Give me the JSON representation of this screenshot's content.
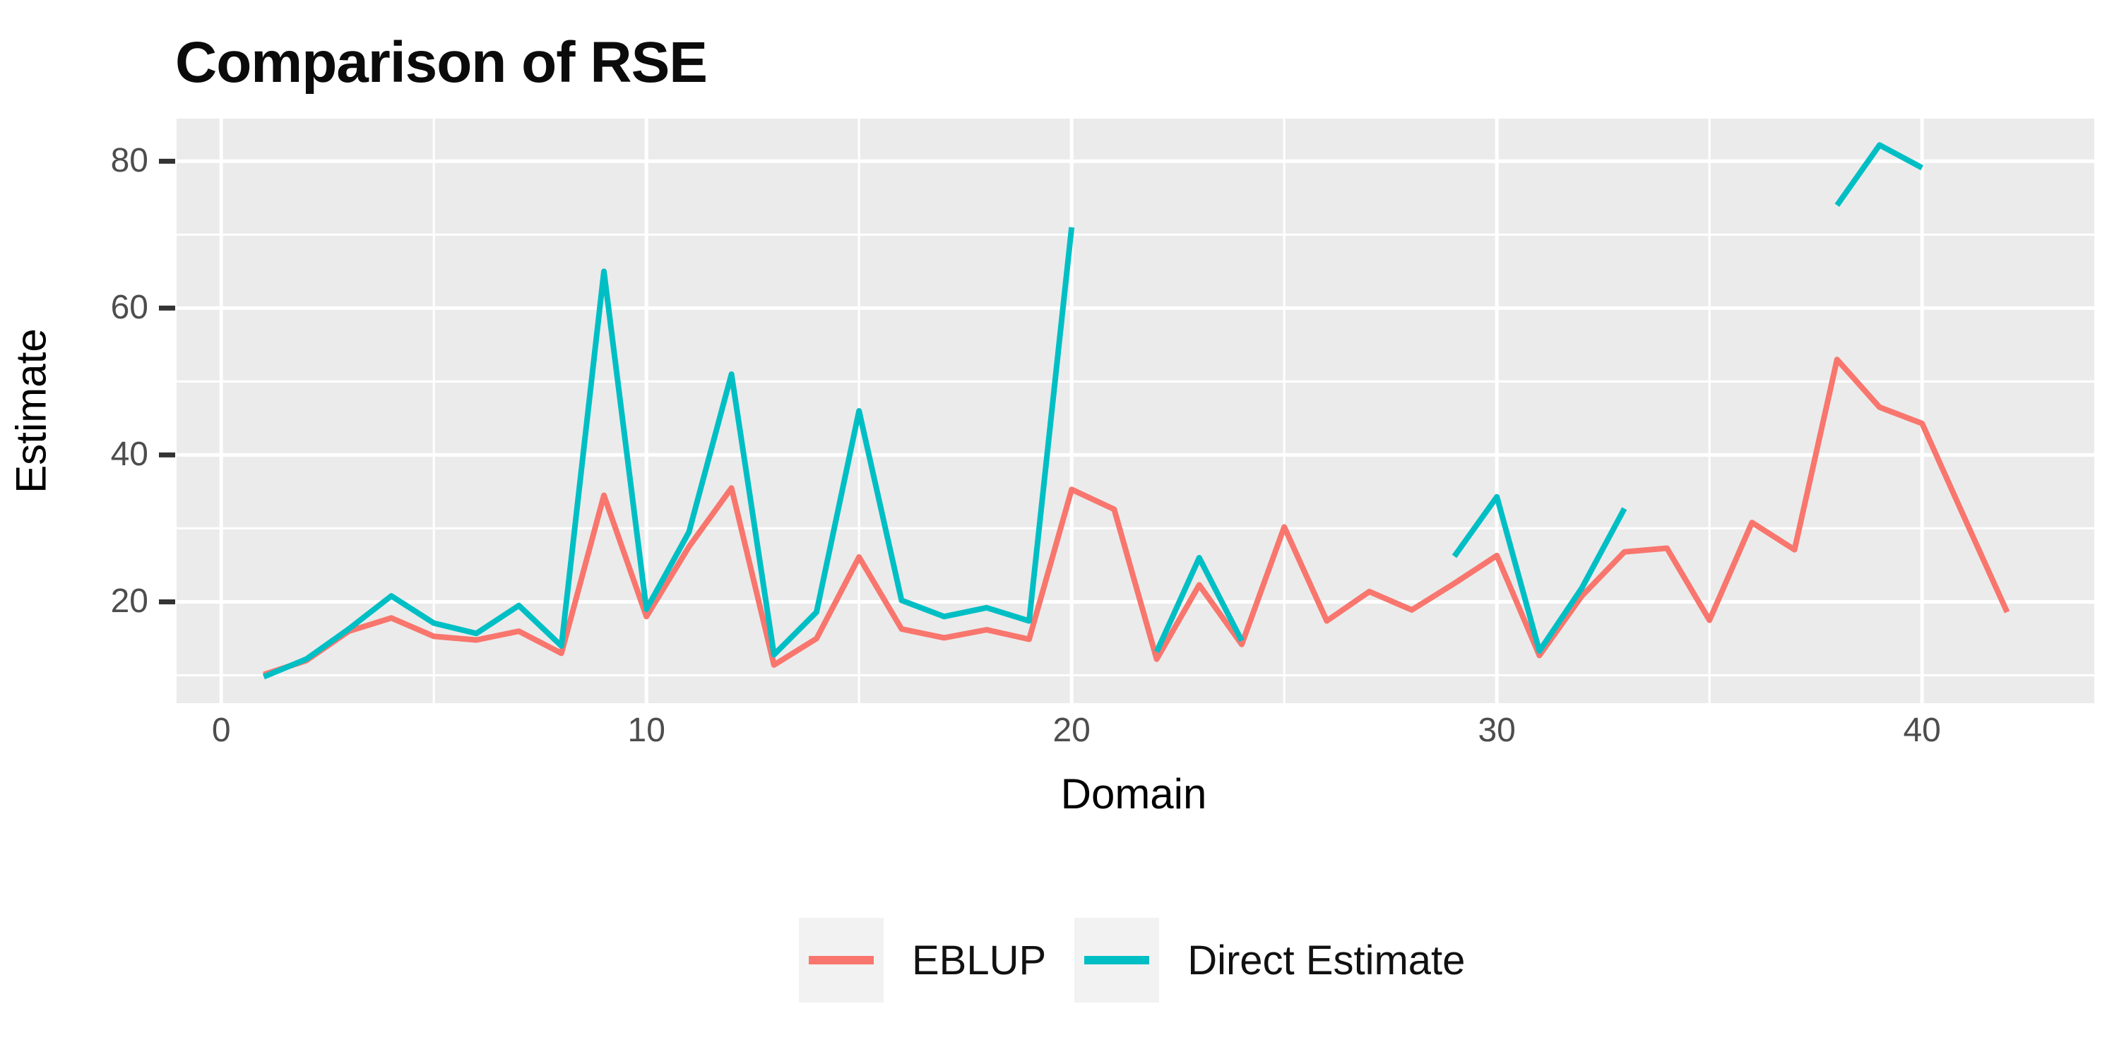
{
  "title": "Comparison of RSE",
  "axes": {
    "x_label": "Domain",
    "y_label": "Estimate"
  },
  "legend": {
    "items": [
      {
        "label": "EBLUP",
        "color": "#F8766D"
      },
      {
        "label": "Direct Estimate",
        "color": "#00BFC4"
      }
    ]
  },
  "colors": {
    "panel_background": "#EBEBEB",
    "gridline": "#FFFFFF",
    "tick_mark": "#333333",
    "tick_text": "#4D4D4D",
    "title_text": "#0B0B0B",
    "axis_title_text": "#000000",
    "legend_key_background": "#F2F2F2",
    "eblup_line": "#F8766D",
    "direct_line": "#00BFC4"
  },
  "chart_data": {
    "type": "line",
    "title": "Comparison of RSE",
    "xlabel": "Domain",
    "ylabel": "Estimate",
    "legend_position": "bottom",
    "grid": "on",
    "panel_background": "#EBEBEB",
    "x": [
      1,
      2,
      3,
      4,
      5,
      6,
      7,
      8,
      9,
      10,
      11,
      12,
      13,
      14,
      15,
      16,
      17,
      18,
      19,
      20,
      21,
      22,
      23,
      24,
      25,
      26,
      27,
      28,
      29,
      30,
      31,
      32,
      33,
      34,
      35,
      36,
      37,
      38,
      39,
      40,
      41,
      42
    ],
    "series": [
      {
        "name": "EBLUP",
        "color": "#F8766D",
        "values": [
          10.1,
          12.0,
          16.0,
          17.8,
          15.3,
          14.8,
          16.0,
          13.0,
          34.5,
          18.0,
          27.5,
          35.5,
          11.4,
          15.0,
          26.1,
          16.3,
          15.1,
          16.2,
          14.9,
          35.3,
          32.6,
          12.2,
          22.3,
          14.2,
          30.2,
          17.4,
          21.4,
          18.9,
          22.5,
          26.3,
          12.7,
          20.8,
          26.8,
          27.3,
          17.5,
          30.8,
          27.1,
          53.0,
          46.5,
          44.3,
          31.4,
          18.6
        ]
      },
      {
        "name": "Direct Estimate",
        "color": "#00BFC4",
        "values": [
          9.8,
          12.2,
          16.3,
          20.8,
          17.1,
          15.7,
          19.5,
          14.0,
          65.0,
          19.0,
          29.5,
          51.0,
          12.8,
          18.6,
          46.0,
          20.2,
          18.0,
          19.2,
          17.4,
          71.0,
          null,
          13.2,
          26.0,
          14.7,
          null,
          null,
          null,
          null,
          26.2,
          34.3,
          13.3,
          21.9,
          32.7,
          null,
          null,
          null,
          null,
          74.0,
          82.2,
          79.1,
          null,
          null
        ]
      }
    ],
    "x_major_ticks": [
      0,
      10,
      20,
      30,
      40
    ],
    "x_minor_gridlines": [
      5,
      15,
      25,
      35
    ],
    "y_major_ticks": [
      20,
      40,
      60,
      80
    ],
    "y_minor_gridlines": [
      10,
      30,
      50,
      70
    ],
    "xlim": [
      -1.05,
      44.05
    ],
    "ylim": [
      6.2,
      85.8
    ]
  }
}
